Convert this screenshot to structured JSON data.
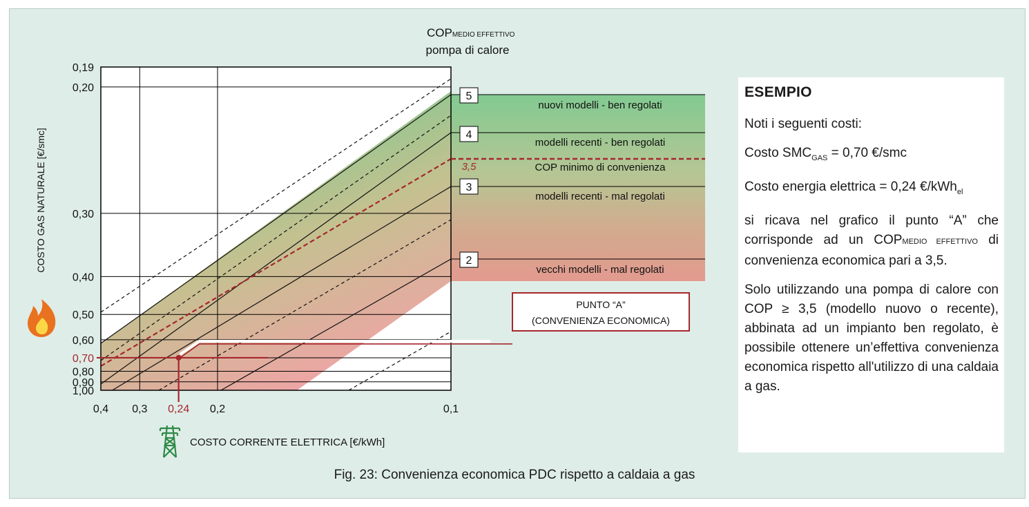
{
  "chart_data": {
    "type": "line",
    "title": "",
    "top_label": {
      "main": "COP",
      "sub": "MEDIO EFFETTIVO",
      "line2": "pompa di calore"
    },
    "y_axis": {
      "label": "COSTO  GAS NATURALE  [€/smc]",
      "ticks": [
        "0,19",
        "0,20",
        "0,30",
        "0,40",
        "0,50",
        "0,60",
        "0,70",
        "0,80",
        "0,90",
        "1,00"
      ],
      "scale": "reciprocal",
      "range": [
        1.0,
        0.19
      ]
    },
    "x_axis": {
      "label": "COSTO CORRENTE ELETTRICA [€/kWh]",
      "ticks": [
        "0,4",
        "0,3",
        "0,24",
        "0,2",
        "0,1"
      ],
      "scale": "reciprocal",
      "range": [
        0.4,
        0.1
      ]
    },
    "cop_markers": [
      "5",
      "4",
      "3,5",
      "3",
      "2"
    ],
    "bands": [
      {
        "label": "nuovi modelli - ben regolati",
        "color": "#7cc88e"
      },
      {
        "label": "modelli recenti - ben regolati",
        "color": "#a6cc92"
      },
      {
        "label": "COP minimo di convenienza",
        "color": "#b22a2a"
      },
      {
        "label": "modelli recenti - mal regolati",
        "color": "#c3b690"
      },
      {
        "label": "vecchi modelli - mal regolati",
        "color": "#dea28e"
      }
    ],
    "point": {
      "name": "PUNTO  “A”",
      "desc": "(CONVENIENZA ECONOMICA)",
      "x": 0.24,
      "y": 0.7,
      "x_label": "0,24",
      "y_label": "0,70"
    },
    "colors": {
      "accent": "#a5272d",
      "grid": "#000000",
      "panel": "#dfede8"
    }
  },
  "example": {
    "title": "ESEMPIO",
    "intro": "Noti i seguenti costi:",
    "gas_prefix": "Costo SMC",
    "gas_sub": "GAS",
    "gas_value": " = 0,70 €/smc",
    "elec_prefix": "Costo energia elettrica = 0,24 €/kWh",
    "elec_sub": "el",
    "para1_a": "si ricava nel grafico il punto “A” che corrisponde ad un COP",
    "para1_sub": "MEDIO EFFETTIVO",
    "para1_b": " di convenienza economica pari a 3,5.",
    "para2": "Solo utilizzando una pompa di calore con COP ≥ 3,5 (modello nuovo o recente), abbinata ad un impianto ben regolato, è possibile ottenere un’effettiva convenienza economica rispetto all'utilizzo di una caldaia a gas."
  },
  "caption": "Fig. 23: Convenienza economica PDC rispetto a caldaia a gas",
  "icons": {
    "gas": "flame-icon",
    "electric": "power-pylon-icon"
  }
}
